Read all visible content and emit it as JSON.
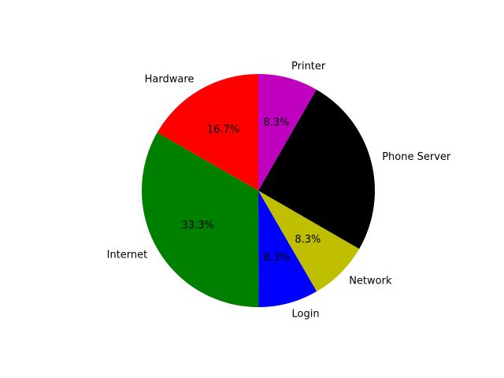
{
  "chart_data": {
    "type": "pie",
    "title": "",
    "start_angle_deg": 90,
    "direction": "counterclockwise",
    "slices": [
      {
        "label": "Hardware",
        "value": 16.7,
        "pct_label": "16.7%",
        "color": "#ff0000"
      },
      {
        "label": "Internet",
        "value": 33.3,
        "pct_label": "33.3%",
        "color": "#008000"
      },
      {
        "label": "Login",
        "value": 8.3,
        "pct_label": "8.3%",
        "color": "#0000ff"
      },
      {
        "label": "Network",
        "value": 8.3,
        "pct_label": "8.3%",
        "color": "#bfbf00"
      },
      {
        "label": "Phone Server",
        "value": 25.0,
        "pct_label": "",
        "color": "#000000"
      },
      {
        "label": "Printer",
        "value": 8.3,
        "pct_label": "8.3%",
        "color": "#bf00bf"
      }
    ]
  }
}
